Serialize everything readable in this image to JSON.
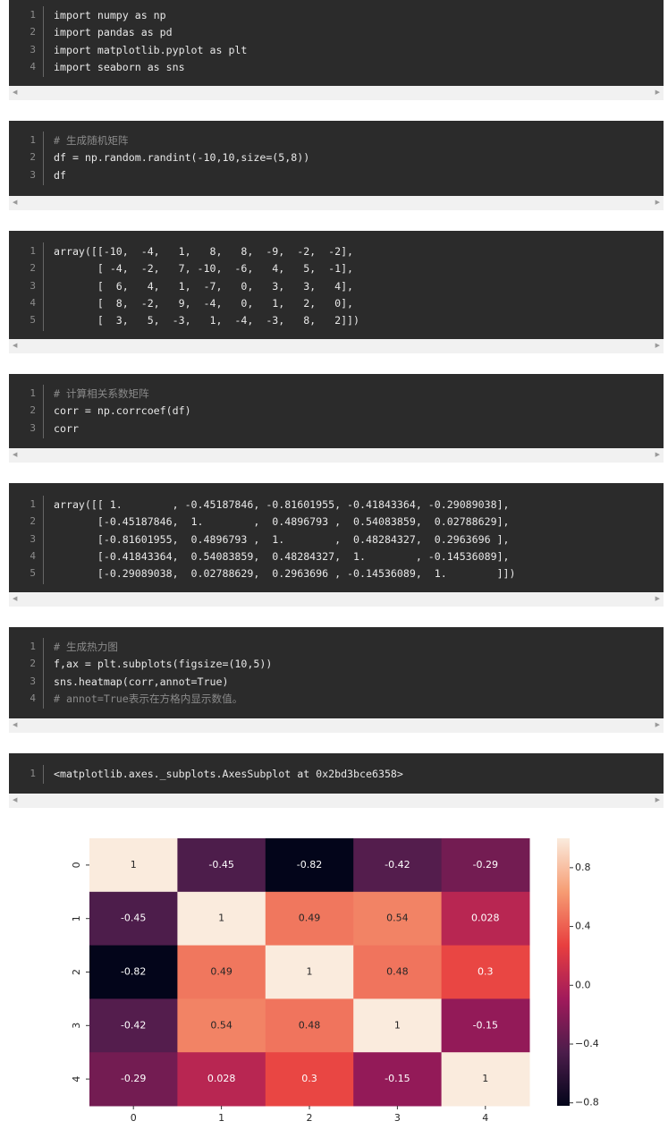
{
  "cells": [
    {
      "lines": [
        {
          "number": 1,
          "text": "import numpy as np"
        },
        {
          "number": 2,
          "text": "import pandas as pd"
        },
        {
          "number": 3,
          "text": "import matplotlib.pyplot as plt"
        },
        {
          "number": 4,
          "text": "import seaborn as sns"
        }
      ]
    },
    {
      "lines": [
        {
          "number": 1,
          "text": "# 生成随机矩阵"
        },
        {
          "number": 2,
          "text": "df = np.random.randint(-10,10,size=(5,8))"
        },
        {
          "number": 3,
          "text": "df"
        }
      ]
    },
    {
      "lines": [
        {
          "number": 1,
          "text": "array([[-10,  -4,   1,   8,   8,  -9,  -2,  -2],"
        },
        {
          "number": 2,
          "text": "       [ -4,  -2,   7, -10,  -6,   4,   5,  -1],"
        },
        {
          "number": 3,
          "text": "       [  6,   4,   1,  -7,   0,   3,   3,   4],"
        },
        {
          "number": 4,
          "text": "       [  8,  -2,   9,  -4,   0,   1,   2,   0],"
        },
        {
          "number": 5,
          "text": "       [  3,   5,  -3,   1,  -4,  -3,   8,   2]])"
        }
      ]
    },
    {
      "lines": [
        {
          "number": 1,
          "text": "# 计算相关系数矩阵"
        },
        {
          "number": 2,
          "text": "corr = np.corrcoef(df)"
        },
        {
          "number": 3,
          "text": "corr"
        }
      ]
    },
    {
      "lines": [
        {
          "number": 1,
          "text": "array([[ 1.        , -0.45187846, -0.81601955, -0.41843364, -0.29089038],"
        },
        {
          "number": 2,
          "text": "       [-0.45187846,  1.        ,  0.4896793 ,  0.54083859,  0.02788629],"
        },
        {
          "number": 3,
          "text": "       [-0.81601955,  0.4896793 ,  1.        ,  0.48284327,  0.2963696 ],"
        },
        {
          "number": 4,
          "text": "       [-0.41843364,  0.54083859,  0.48284327,  1.        , -0.14536089],"
        },
        {
          "number": 5,
          "text": "       [-0.29089038,  0.02788629,  0.2963696 , -0.14536089,  1.        ]])"
        }
      ]
    },
    {
      "lines": [
        {
          "number": 1,
          "text": "# 生成热力图"
        },
        {
          "number": 2,
          "text": "f,ax = plt.subplots(figsize=(10,5))"
        },
        {
          "number": 3,
          "text": "sns.heatmap(corr,annot=True)"
        },
        {
          "number": 4,
          "text": "# annot=True表示在方格内显示数值。"
        }
      ]
    },
    {
      "lines": [
        {
          "number": 1,
          "text": "<matplotlib.axes._subplots.AxesSubplot at 0x2bd3bce6358>"
        }
      ]
    }
  ],
  "chart_data": {
    "type": "heatmap",
    "colormap": "rocket",
    "x_categories": [
      "0",
      "1",
      "2",
      "3",
      "4"
    ],
    "y_categories": [
      "0",
      "1",
      "2",
      "3",
      "4"
    ],
    "values": [
      [
        1,
        -0.45,
        -0.82,
        -0.42,
        -0.29
      ],
      [
        -0.45,
        1,
        0.49,
        0.54,
        0.028
      ],
      [
        -0.82,
        0.49,
        1,
        0.48,
        0.3
      ],
      [
        -0.42,
        0.54,
        0.48,
        1,
        -0.15
      ],
      [
        -0.29,
        0.028,
        0.3,
        -0.15,
        1
      ]
    ],
    "clim": [
      -0.82,
      1
    ],
    "cticks": [
      0.8,
      0.4,
      {
        "value": 0,
        "label": "0.0"
      },
      {
        "value": -0.4,
        "label": "−0.4"
      },
      {
        "value": -0.8,
        "label": "−0.8"
      }
    ]
  }
}
